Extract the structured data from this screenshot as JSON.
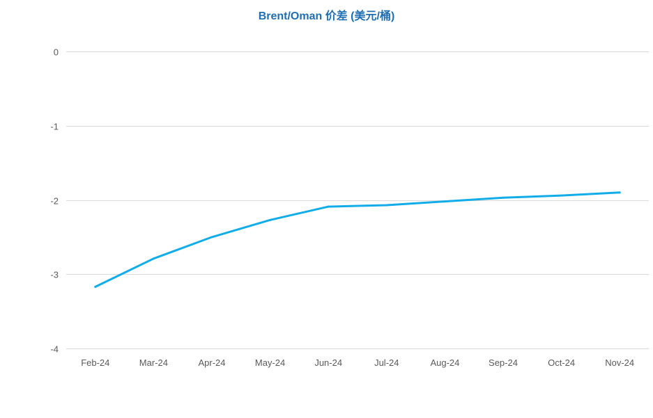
{
  "chart_data": {
    "type": "line",
    "title": "Brent/Oman 价差 (美元/桶)",
    "xlabel": "",
    "ylabel": "",
    "categories": [
      "Feb-24",
      "Mar-24",
      "Apr-24",
      "May-24",
      "Jun-24",
      "Jul-24",
      "Aug-24",
      "Sep-24",
      "Oct-24",
      "Nov-24"
    ],
    "series": [
      {
        "values": [
          -3.17,
          -2.79,
          -2.5,
          -2.27,
          -2.09,
          -2.07,
          -2.02,
          -1.97,
          -1.94,
          -1.9
        ],
        "color": "#12ade8"
      }
    ],
    "ylim": [
      -4,
      0
    ],
    "yticks": [
      0,
      -1,
      -2,
      -3,
      -4
    ],
    "grid": true,
    "legend": "none"
  }
}
